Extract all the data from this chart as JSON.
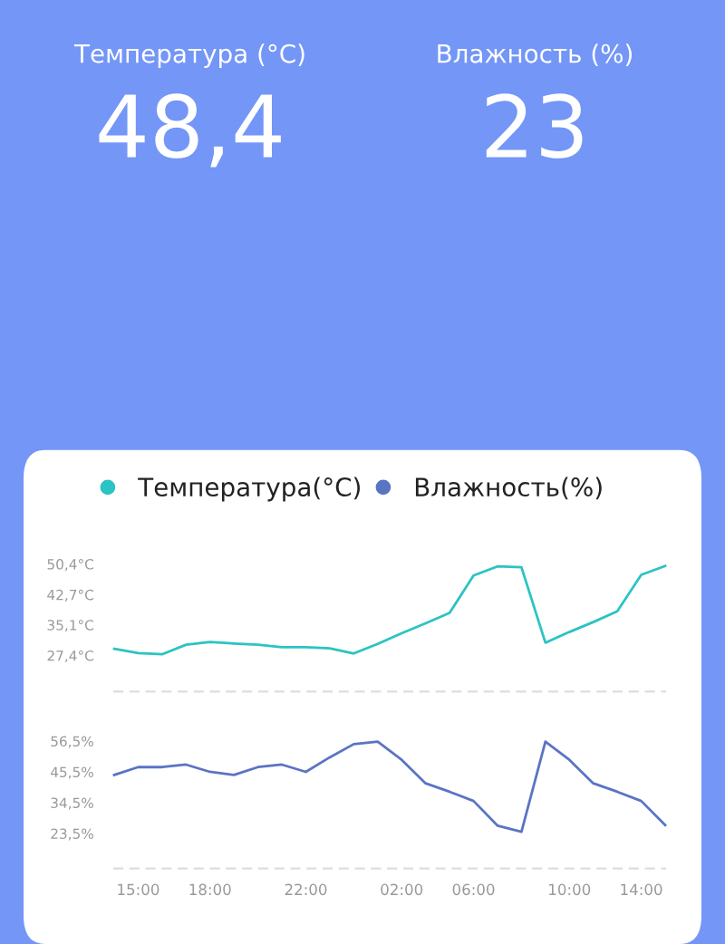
{
  "chart_data": [
    {
      "type": "other",
      "annotations": [
        "Температура (°C)",
        "48,4",
        "Влажность (%)",
        "23"
      ]
    },
    {
      "type": "line",
      "categories": [
        null,
        null,
        null,
        null,
        null,
        null,
        null,
        null,
        null,
        null,
        null,
        null,
        null,
        null,
        null,
        null,
        null,
        null,
        null,
        null,
        null,
        null,
        null,
        null
      ],
      "series": [
        {
          "name": "Температура(°C)",
          "color": "#2cc3c3",
          "values": [
            29.1,
            28.0,
            27.7,
            30.1,
            30.8,
            30.4,
            30.1,
            29.5,
            29.5,
            29.2,
            27.9,
            30.3,
            33.0,
            35.5,
            38.1,
            47.5,
            49.8,
            49.6,
            30.6,
            33.3,
            35.8,
            38.5,
            47.7,
            49.9
          ]
        }
      ],
      "ylim": [
        18.3,
        50.4
      ],
      "yticks": [
        {
          "value": 27.4,
          "label": "27,4°C"
        },
        {
          "value": 35.1,
          "label": "35,1°C"
        },
        {
          "value": 42.7,
          "label": "42,7°C"
        },
        {
          "value": 50.4,
          "label": "50,4°C"
        }
      ],
      "tick_labels": "y",
      "legend": "top left",
      "grid": false,
      "marker": "none"
    },
    {
      "type": "line",
      "categories": [
        null,
        "15:00",
        null,
        null,
        "18:00",
        null,
        null,
        null,
        "22:00",
        null,
        null,
        null,
        "02:00",
        null,
        null,
        "06:00",
        null,
        null,
        null,
        "10:00",
        null,
        null,
        "14:00",
        null
      ],
      "series": [
        {
          "name": "Влажность(%)",
          "color": "#5a74c4",
          "values": [
            44.4,
            47.2,
            47.2,
            48.1,
            45.5,
            44.4,
            47.2,
            48.1,
            45.5,
            50.7,
            55.4,
            56.3,
            49.8,
            41.4,
            38.4,
            35.1,
            26.3,
            24.1,
            56.3,
            49.8,
            41.4,
            38.4,
            35.1,
            26.5
          ]
        }
      ],
      "ylim": [
        11,
        56.5
      ],
      "yticks": [
        {
          "value": 23.5,
          "label": "23,5%"
        },
        {
          "value": 34.5,
          "label": "34,5%"
        },
        {
          "value": 45.5,
          "label": "45,5%"
        },
        {
          "value": 56.5,
          "label": "56,5%"
        }
      ],
      "legend": "top",
      "grid": false,
      "marker": "none"
    }
  ]
}
